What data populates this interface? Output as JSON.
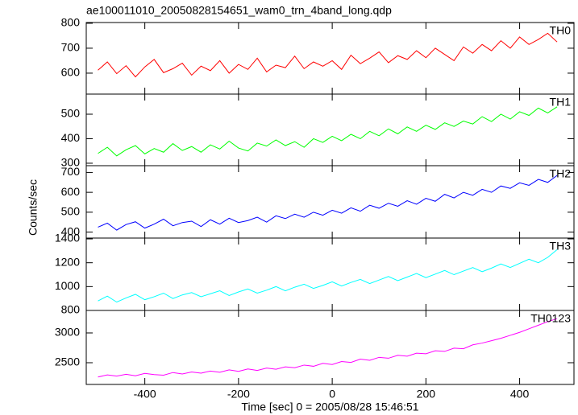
{
  "chart_data": [
    {
      "type": "line",
      "title": "ae100011010_20050828154651_wam0_trn_4band_long.qdp",
      "x": [
        -500,
        -480,
        -460,
        -440,
        -420,
        -400,
        -380,
        -360,
        -340,
        -320,
        -300,
        -280,
        -260,
        -240,
        -220,
        -200,
        -180,
        -160,
        -140,
        -120,
        -100,
        -80,
        -60,
        -40,
        -20,
        0,
        20,
        40,
        60,
        80,
        100,
        120,
        140,
        160,
        180,
        200,
        220,
        240,
        260,
        280,
        300,
        320,
        340,
        360,
        380,
        400,
        420,
        440,
        460,
        480
      ],
      "xlim": [
        -525,
        516
      ],
      "ylim": [
        516,
        803
      ],
      "yticks": [
        600,
        700,
        800
      ],
      "series": [
        {
          "name": "TH0",
          "color": "#ff0000",
          "values": [
            612,
            645,
            598,
            630,
            585,
            625,
            655,
            602,
            618,
            640,
            592,
            628,
            610,
            650,
            600,
            635,
            615,
            660,
            605,
            632,
            622,
            668,
            618,
            645,
            628,
            650,
            615,
            672,
            638,
            660,
            685,
            642,
            670,
            655,
            690,
            662,
            700,
            675,
            650,
            705,
            680,
            715,
            690,
            730,
            700,
            745,
            715,
            735,
            760,
            725
          ]
        }
      ]
    },
    {
      "type": "line",
      "x": [
        -500,
        -480,
        -460,
        -440,
        -420,
        -400,
        -380,
        -360,
        -340,
        -320,
        -300,
        -280,
        -260,
        -240,
        -220,
        -200,
        -180,
        -160,
        -140,
        -120,
        -100,
        -80,
        -60,
        -40,
        -20,
        0,
        20,
        40,
        60,
        80,
        100,
        120,
        140,
        160,
        180,
        200,
        220,
        240,
        260,
        280,
        300,
        320,
        340,
        360,
        380,
        400,
        420,
        440,
        460,
        480
      ],
      "xlim": [
        -525,
        516
      ],
      "ylim": [
        290,
        582
      ],
      "yticks": [
        300,
        400,
        500
      ],
      "series": [
        {
          "name": "TH1",
          "color": "#00ff00",
          "values": [
            340,
            365,
            330,
            355,
            372,
            338,
            360,
            345,
            380,
            352,
            368,
            345,
            375,
            358,
            390,
            362,
            350,
            382,
            370,
            395,
            372,
            388,
            365,
            400,
            385,
            410,
            392,
            418,
            400,
            430,
            412,
            440,
            420,
            448,
            430,
            455,
            438,
            465,
            450,
            472,
            460,
            490,
            470,
            500,
            480,
            510,
            495,
            525,
            505,
            530
          ]
        }
      ]
    },
    {
      "type": "line",
      "ylabel": "Counts/sec",
      "x": [
        -500,
        -480,
        -460,
        -440,
        -420,
        -400,
        -380,
        -360,
        -340,
        -320,
        -300,
        -280,
        -260,
        -240,
        -220,
        -200,
        -180,
        -160,
        -140,
        -120,
        -100,
        -80,
        -60,
        -40,
        -20,
        0,
        20,
        40,
        60,
        80,
        100,
        120,
        140,
        160,
        180,
        200,
        220,
        240,
        260,
        280,
        300,
        320,
        340,
        360,
        380,
        400,
        420,
        440,
        460,
        480
      ],
      "xlim": [
        -525,
        516
      ],
      "ylim": [
        370,
        734
      ],
      "yticks": [
        400,
        500,
        600,
        700
      ],
      "series": [
        {
          "name": "TH2",
          "color": "#0000ff",
          "values": [
            425,
            445,
            410,
            438,
            452,
            420,
            440,
            465,
            432,
            448,
            455,
            428,
            462,
            440,
            470,
            448,
            458,
            475,
            450,
            482,
            468,
            490,
            475,
            500,
            485,
            510,
            495,
            522,
            505,
            535,
            520,
            545,
            530,
            558,
            540,
            570,
            555,
            590,
            572,
            600,
            585,
            615,
            600,
            632,
            620,
            648,
            635,
            665,
            650,
            685
          ]
        }
      ]
    },
    {
      "type": "line",
      "x": [
        -500,
        -480,
        -460,
        -440,
        -420,
        -400,
        -380,
        -360,
        -340,
        -320,
        -300,
        -280,
        -260,
        -240,
        -220,
        -200,
        -180,
        -160,
        -140,
        -120,
        -100,
        -80,
        -60,
        -40,
        -20,
        0,
        20,
        40,
        60,
        80,
        100,
        120,
        140,
        160,
        180,
        200,
        220,
        240,
        260,
        280,
        300,
        320,
        340,
        360,
        380,
        400,
        420,
        440,
        460,
        480
      ],
      "xlim": [
        -525,
        516
      ],
      "ylim": [
        800,
        1407
      ],
      "yticks": [
        800,
        1000,
        1200,
        1400
      ],
      "series": [
        {
          "name": "TH3",
          "color": "#00ffff",
          "values": [
            880,
            920,
            870,
            905,
            935,
            890,
            915,
            945,
            900,
            930,
            950,
            915,
            940,
            965,
            925,
            955,
            980,
            945,
            970,
            1000,
            965,
            995,
            1020,
            985,
            1010,
            1040,
            1005,
            1035,
            1060,
            1025,
            1055,
            1085,
            1050,
            1080,
            1110,
            1075,
            1105,
            1135,
            1100,
            1130,
            1160,
            1125,
            1155,
            1190,
            1160,
            1195,
            1230,
            1200,
            1245,
            1310
          ]
        }
      ]
    },
    {
      "type": "line",
      "xlabel": "Time [sec] 0 = 2005/08/28 15:46:51",
      "x": [
        -500,
        -480,
        -460,
        -440,
        -420,
        -400,
        -380,
        -360,
        -340,
        -320,
        -300,
        -280,
        -260,
        -240,
        -220,
        -200,
        -180,
        -160,
        -140,
        -120,
        -100,
        -80,
        -60,
        -40,
        -20,
        0,
        20,
        40,
        60,
        80,
        100,
        120,
        140,
        160,
        180,
        200,
        220,
        240,
        260,
        280,
        300,
        320,
        340,
        360,
        380,
        400,
        420,
        440,
        460,
        480
      ],
      "xlim": [
        -525,
        516
      ],
      "xticks": [
        -400,
        -200,
        0,
        200,
        400
      ],
      "ylim": [
        2135,
        3378
      ],
      "yticks": [
        2500,
        3000
      ],
      "series": [
        {
          "name": "TH0123",
          "color": "#ff00ff",
          "values": [
            2260,
            2295,
            2275,
            2305,
            2280,
            2320,
            2300,
            2290,
            2335,
            2310,
            2345,
            2325,
            2360,
            2340,
            2380,
            2355,
            2395,
            2370,
            2410,
            2390,
            2430,
            2415,
            2460,
            2440,
            2490,
            2470,
            2520,
            2505,
            2560,
            2540,
            2590,
            2575,
            2625,
            2610,
            2660,
            2650,
            2700,
            2690,
            2745,
            2735,
            2800,
            2830,
            2870,
            2910,
            2960,
            3010,
            3070,
            3130,
            3190,
            3240
          ]
        }
      ]
    }
  ]
}
